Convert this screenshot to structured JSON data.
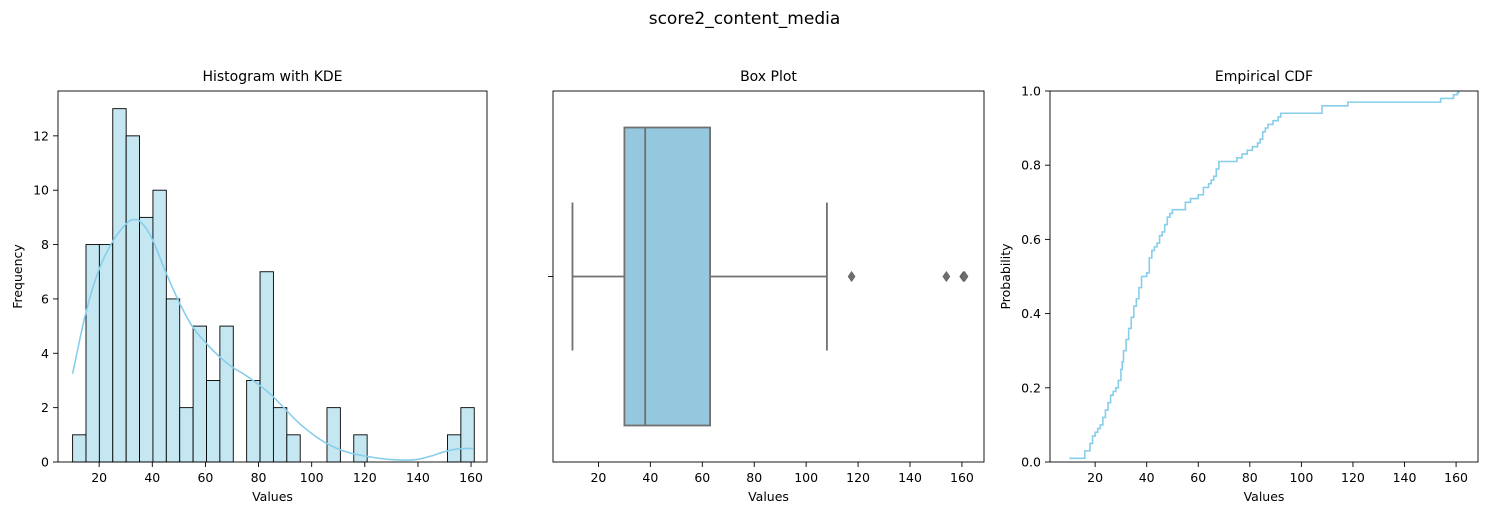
{
  "suptitle": "score2_content_media",
  "colors": {
    "hist_fill": "#c5e7f2",
    "accent": "#87ceeb",
    "box_fill": "#95c8de",
    "box_edge": "#707070"
  },
  "chart_data": [
    {
      "type": "bar",
      "title": "Histogram with KDE",
      "xlabel": "Values",
      "ylabel": "Frequency",
      "xlim": [
        4.5,
        166
      ],
      "ylim": [
        0,
        13.65
      ],
      "xticks": [
        20,
        40,
        60,
        80,
        100,
        120,
        140,
        160
      ],
      "yticks": [
        0,
        2,
        4,
        6,
        8,
        10,
        12
      ],
      "bin_edges": [
        10,
        15.04,
        20.08,
        25.12,
        30.16,
        35.2,
        40.24,
        45.28,
        50.32,
        55.36,
        60.4,
        65.44,
        70.48,
        75.52,
        80.56,
        85.6,
        90.64,
        95.68,
        100.72,
        105.76,
        110.8,
        115.84,
        120.88,
        125.92,
        130.96,
        136,
        141.04,
        146.08,
        151.12,
        156.16,
        161.2
      ],
      "counts": [
        1,
        8,
        8,
        13,
        12,
        9,
        10,
        6,
        2,
        5,
        3,
        5,
        0,
        3,
        7,
        2,
        1,
        0,
        0,
        2,
        0,
        1,
        0,
        0,
        0,
        0,
        0,
        0,
        1,
        2
      ],
      "kde": {
        "x": [
          10,
          15,
          20,
          25,
          30,
          33,
          36,
          40,
          45,
          50,
          55,
          60,
          65,
          70,
          75,
          80,
          85,
          90,
          95,
          100,
          105,
          110,
          115,
          120,
          125,
          130,
          135,
          140,
          145,
          150,
          155,
          161
        ],
        "y": [
          3.25,
          5.5,
          7.1,
          8.1,
          8.75,
          8.92,
          8.8,
          8.2,
          7.0,
          5.9,
          5.0,
          4.4,
          3.9,
          3.5,
          3.2,
          2.85,
          2.45,
          1.95,
          1.45,
          1.05,
          0.72,
          0.48,
          0.32,
          0.22,
          0.14,
          0.09,
          0.07,
          0.1,
          0.22,
          0.38,
          0.48,
          0.5
        ]
      }
    },
    {
      "type": "box",
      "title": "Box Plot",
      "xlabel": "Values",
      "xlim": [
        2.5,
        168.5
      ],
      "xticks": [
        20,
        40,
        60,
        80,
        100,
        120,
        140,
        160
      ],
      "whisker_low": 10,
      "q1": 30,
      "median": 38,
      "q3": 63,
      "whisker_high": 108,
      "outliers": [
        117.5,
        154,
        160.5,
        161
      ]
    },
    {
      "type": "line",
      "title": "Empirical CDF",
      "xlabel": "Values",
      "ylabel": "Probability",
      "xlim": [
        2.5,
        168.5
      ],
      "ylim": [
        0,
        1
      ],
      "xticks": [
        20,
        40,
        60,
        80,
        100,
        120,
        140,
        160
      ],
      "yticks": [
        0.0,
        0.2,
        0.4,
        0.6,
        0.8,
        1.0
      ],
      "points": [
        [
          10,
          0.01
        ],
        [
          16,
          0.03
        ],
        [
          18,
          0.05
        ],
        [
          19,
          0.07
        ],
        [
          20,
          0.08
        ],
        [
          21,
          0.09
        ],
        [
          22,
          0.1
        ],
        [
          23,
          0.12
        ],
        [
          24,
          0.14
        ],
        [
          25,
          0.16
        ],
        [
          26,
          0.18
        ],
        [
          27,
          0.19
        ],
        [
          28,
          0.2
        ],
        [
          29,
          0.22
        ],
        [
          30,
          0.25
        ],
        [
          30.5,
          0.27
        ],
        [
          31,
          0.3
        ],
        [
          32,
          0.33
        ],
        [
          33,
          0.36
        ],
        [
          34,
          0.39
        ],
        [
          35,
          0.42
        ],
        [
          36,
          0.44
        ],
        [
          37,
          0.47
        ],
        [
          38,
          0.5
        ],
        [
          40,
          0.51
        ],
        [
          41,
          0.55
        ],
        [
          42,
          0.57
        ],
        [
          43,
          0.58
        ],
        [
          44,
          0.59
        ],
        [
          45,
          0.61
        ],
        [
          46,
          0.62
        ],
        [
          47,
          0.64
        ],
        [
          48,
          0.66
        ],
        [
          49,
          0.67
        ],
        [
          50,
          0.68
        ],
        [
          55,
          0.7
        ],
        [
          57,
          0.71
        ],
        [
          60,
          0.72
        ],
        [
          62,
          0.74
        ],
        [
          64,
          0.75
        ],
        [
          65,
          0.76
        ],
        [
          66,
          0.77
        ],
        [
          67,
          0.79
        ],
        [
          68,
          0.81
        ],
        [
          75,
          0.82
        ],
        [
          77,
          0.83
        ],
        [
          79,
          0.84
        ],
        [
          81,
          0.85
        ],
        [
          83,
          0.86
        ],
        [
          84,
          0.87
        ],
        [
          85,
          0.89
        ],
        [
          86,
          0.9
        ],
        [
          87,
          0.91
        ],
        [
          89,
          0.92
        ],
        [
          91,
          0.93
        ],
        [
          92,
          0.94
        ],
        [
          108,
          0.96
        ],
        [
          118,
          0.97
        ],
        [
          154,
          0.98
        ],
        [
          159,
          0.99
        ],
        [
          160.5,
          0.995
        ],
        [
          161,
          1.0
        ]
      ]
    }
  ]
}
